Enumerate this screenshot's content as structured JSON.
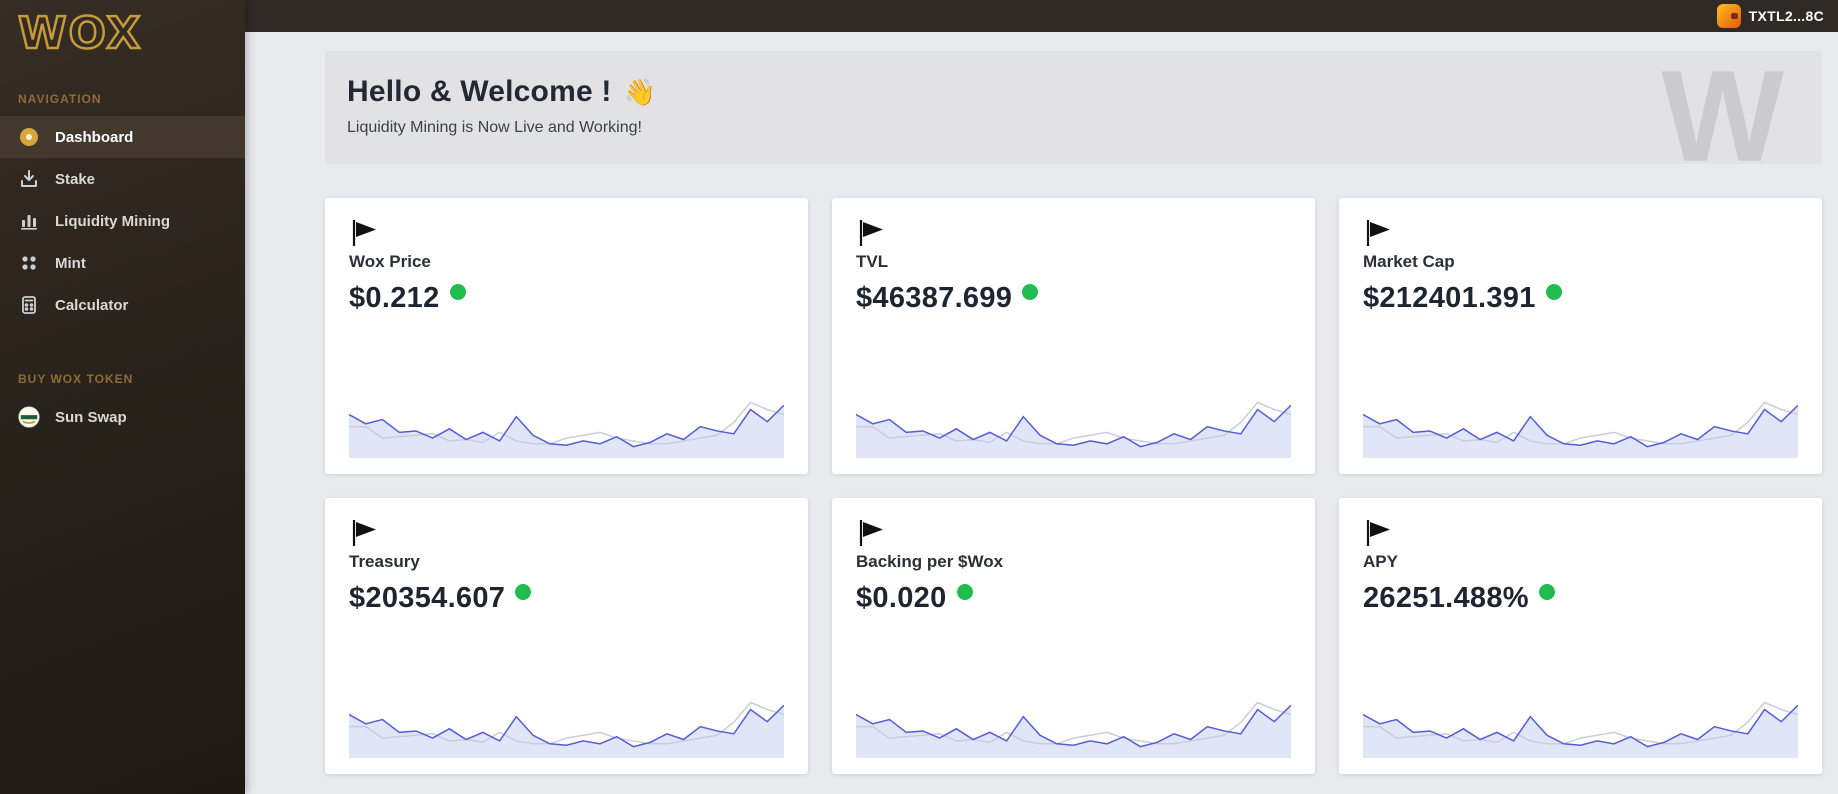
{
  "topbar": {
    "wallet_label": "TXTL2...8C"
  },
  "sidebar": {
    "logo": "WOX",
    "sections": [
      {
        "label": "NAVIGATION",
        "items": [
          {
            "label": "Dashboard",
            "icon": "dashboard-icon",
            "active": true
          },
          {
            "label": "Stake",
            "icon": "stake-icon",
            "active": false
          },
          {
            "label": "Liquidity Mining",
            "icon": "liquidity-mining-icon",
            "active": false
          },
          {
            "label": "Mint",
            "icon": "mint-icon",
            "active": false
          },
          {
            "label": "Calculator",
            "icon": "calculator-icon",
            "active": false
          }
        ]
      },
      {
        "label": "BUY WOX TOKEN",
        "items": [
          {
            "label": "Sun Swap",
            "icon": "sun-swap-icon",
            "active": false
          }
        ]
      }
    ]
  },
  "welcome": {
    "title": "Hello & Welcome !",
    "emoji": "👋",
    "subtitle": "Liquidity Mining is Now Live and Working!",
    "watermark": "W"
  },
  "cards": [
    {
      "label": "Wox Price",
      "value": "$0.212"
    },
    {
      "label": "TVL",
      "value": "$46387.699"
    },
    {
      "label": "Market Cap",
      "value": "$212401.391"
    },
    {
      "label": "Treasury",
      "value": "$20354.607"
    },
    {
      "label": "Backing per $Wox",
      "value": "$0.020"
    },
    {
      "label": "APY",
      "value": "26251.488%"
    }
  ],
  "sparkline": {
    "type": "line",
    "series": [
      {
        "name": "secondary",
        "color": "#c7cdd9",
        "values": [
          38,
          38,
          22,
          24,
          26,
          28,
          18,
          20,
          16,
          30,
          18,
          14,
          14,
          22,
          26,
          30,
          22,
          18,
          14,
          14,
          18,
          22,
          26,
          44,
          72,
          62,
          55
        ]
      },
      {
        "name": "primary",
        "color": "#545cd6",
        "fill": "#e0e6f8",
        "values": [
          55,
          42,
          48,
          30,
          32,
          22,
          35,
          20,
          30,
          18,
          52,
          26,
          14,
          12,
          18,
          14,
          24,
          10,
          16,
          28,
          20,
          38,
          32,
          28,
          62,
          45,
          68
        ]
      }
    ]
  },
  "colors": {
    "accent_gold": "#c79a3a",
    "status_green": "#1fbd4f",
    "spark_primary": "#545cd6",
    "sidebar_bg": "#2a231c",
    "main_bg": "#e9eaee"
  }
}
